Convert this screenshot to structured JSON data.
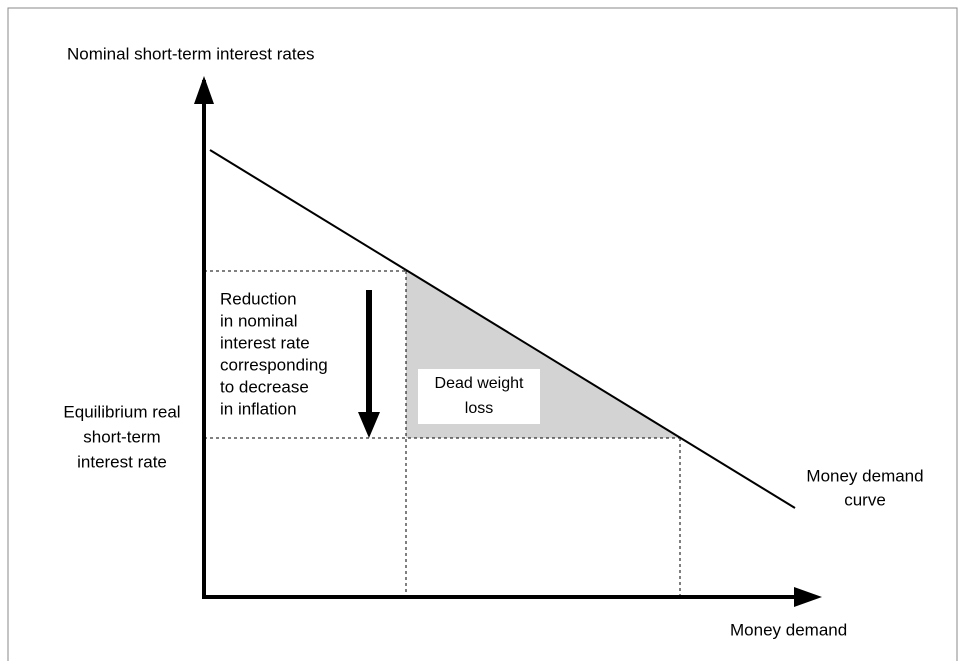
{
  "y_axis_label": "Nominal short-term interest rates",
  "x_axis_label": "Money demand",
  "curve_label": [
    "Money demand",
    "curve"
  ],
  "equilibrium_label": [
    "Equilibrium real",
    "short-term",
    "interest rate"
  ],
  "reduction_label": [
    "Reduction",
    "in nominal",
    "interest rate",
    "corresponding",
    "to decrease",
    "in inflation"
  ],
  "deadweight_label": [
    "Dead weight",
    "loss"
  ]
}
